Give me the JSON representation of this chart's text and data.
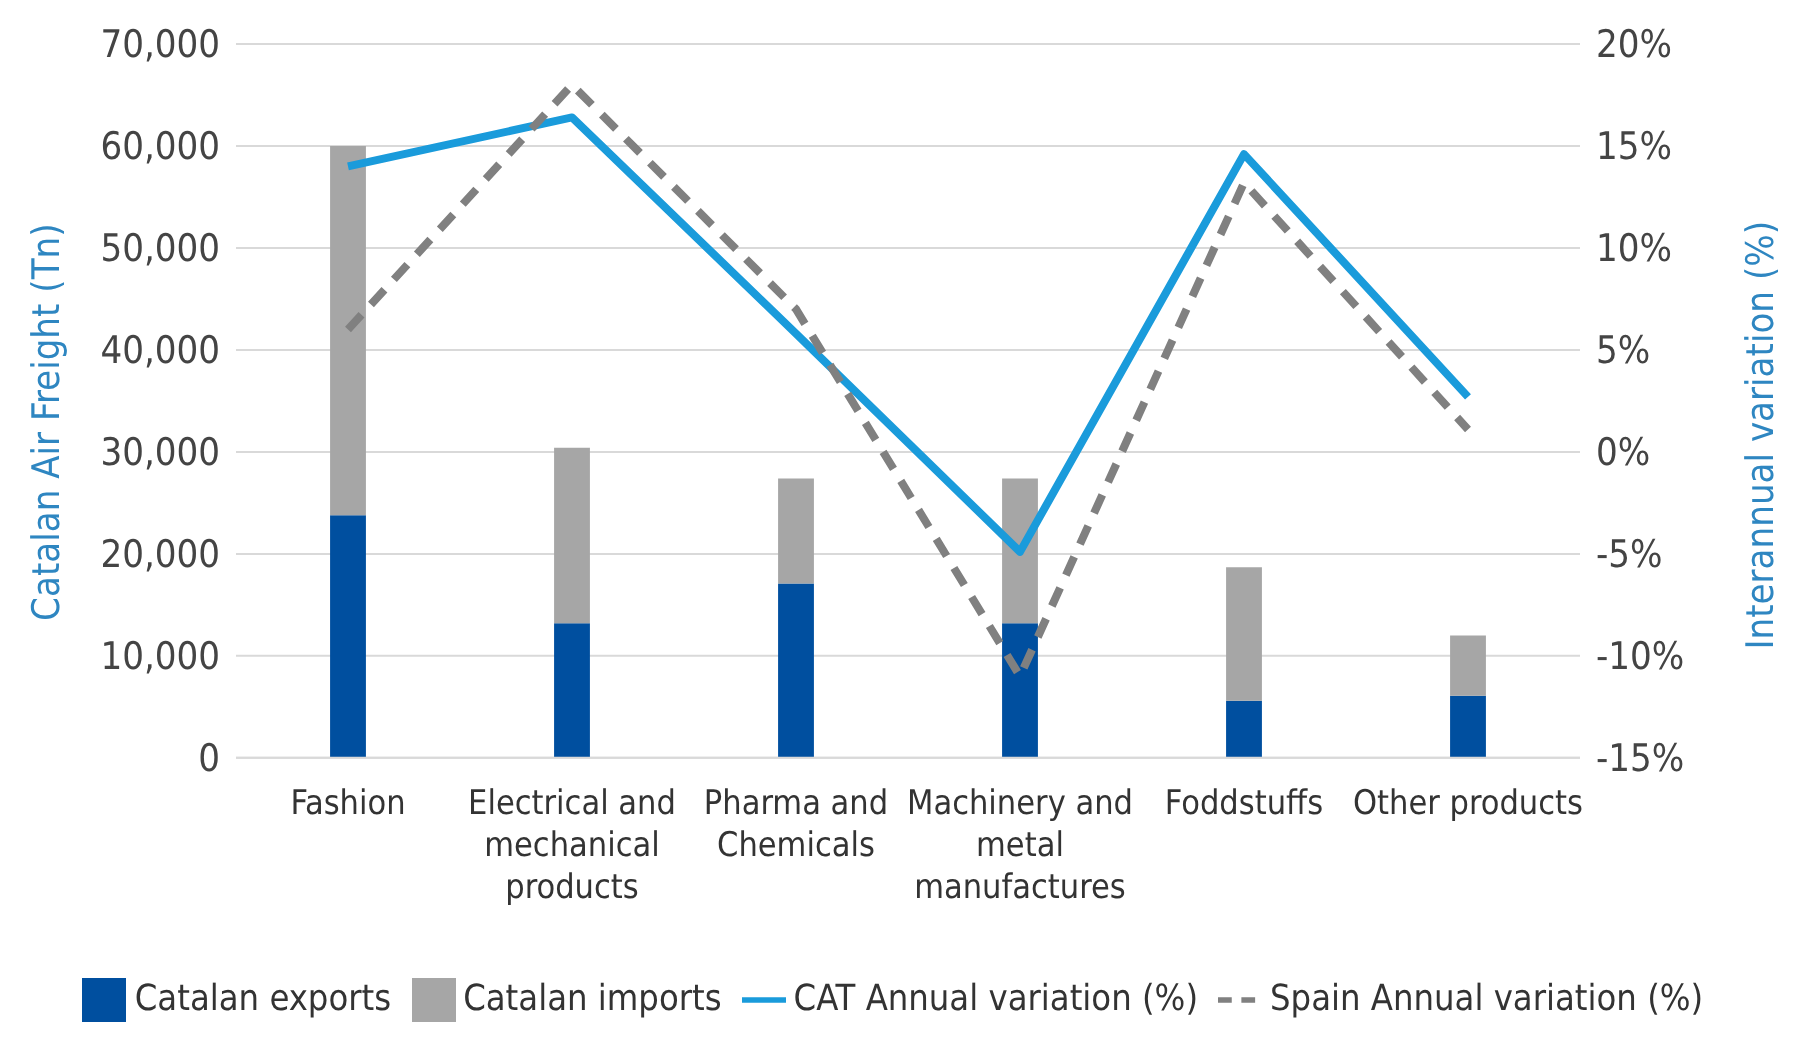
{
  "chart_data": {
    "type": "bar",
    "stacked": true,
    "ylabel": "Catalan Air Freight (Tn)",
    "y2label": "Interannual variation (%)",
    "categories": [
      "Fashion",
      "Electrical and mechanical products",
      "Pharma and Chemicals",
      "Machinery and metal manufactures",
      "Foddstuffs",
      "Other products"
    ],
    "series": [
      {
        "name": "Catalan exports",
        "color": "#004f9f",
        "values": [
          23800,
          13200,
          17100,
          13200,
          5600,
          6100
        ]
      },
      {
        "name": "Catalan imports",
        "color": "#a6a6a6",
        "values": [
          36200,
          17200,
          10300,
          14200,
          13100,
          5900
        ]
      },
      {
        "name": "CAT Annual variation (%)",
        "type": "line",
        "axis": "y2",
        "color": "#1a9bdb",
        "line_style": "solid",
        "values": [
          14,
          16.4,
          5.8,
          -4.9,
          14.6,
          2.7
        ]
      },
      {
        "name": "Spain Annual variation (%)",
        "type": "line",
        "axis": "y2",
        "color": "#808080",
        "line_style": "dashed",
        "values": [
          6,
          18,
          7,
          -11,
          13.2,
          1.1
        ]
      }
    ],
    "ylim": [
      0,
      70000
    ],
    "yticks": [
      {
        "value": 0,
        "label": "0"
      },
      {
        "value": 10000,
        "label": "10,000"
      },
      {
        "value": 20000,
        "label": "20,000"
      },
      {
        "value": 30000,
        "label": "30,000"
      },
      {
        "value": 40000,
        "label": "40,000"
      },
      {
        "value": 50000,
        "label": "50,000"
      },
      {
        "value": 60000,
        "label": "60,000"
      },
      {
        "value": 70000,
        "label": "70,000"
      }
    ],
    "y2lim": [
      -15,
      20
    ],
    "y2ticks": [
      {
        "value": -15,
        "label": "-15%"
      },
      {
        "value": -10,
        "label": "-10%"
      },
      {
        "value": -5,
        "label": "-5%"
      },
      {
        "value": 0,
        "label": "0%"
      },
      {
        "value": 5,
        "label": "5%"
      },
      {
        "value": 10,
        "label": "10%"
      },
      {
        "value": 15,
        "label": "15%"
      },
      {
        "value": 20,
        "label": "20%"
      }
    ],
    "grid": "y",
    "legend": "bottom",
    "marker": "none"
  }
}
